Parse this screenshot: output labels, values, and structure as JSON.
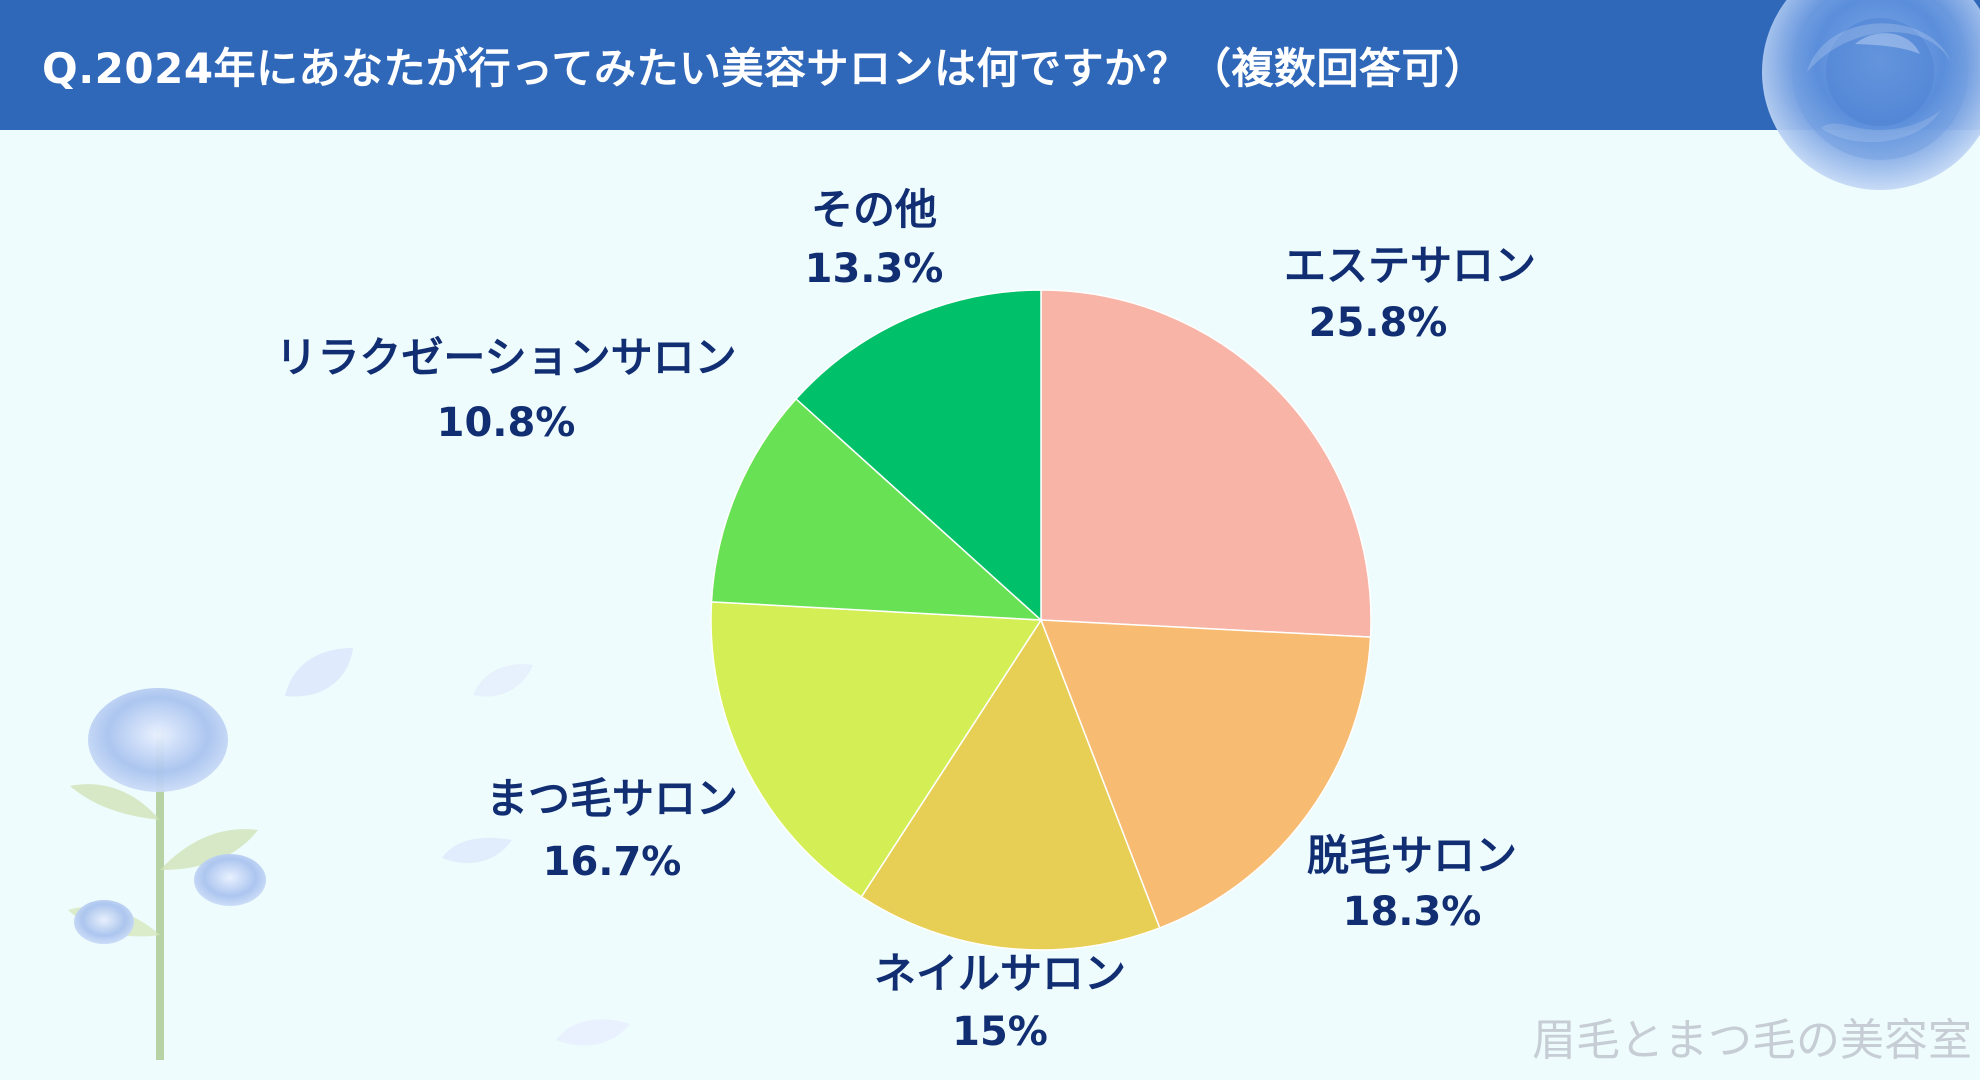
{
  "header": {
    "title": "Q.2024年にあなたが行ってみたい美容サロンは何ですか？（複数回答可）"
  },
  "chart_data": {
    "type": "pie",
    "title": "",
    "slices": [
      {
        "label": "エステサロン",
        "value_text": "25.8%",
        "value": 25.8,
        "color": "#f8b5a7"
      },
      {
        "label": "脱毛サロン",
        "value_text": "18.3%",
        "value": 18.3,
        "color": "#f7bb72"
      },
      {
        "label": "ネイルサロン",
        "value_text": "15%",
        "value": 15,
        "color": "#e7cf55"
      },
      {
        "label": "まつ毛サロン",
        "value_text": "16.7%",
        "value": 16.7,
        "color": "#d3ef55"
      },
      {
        "label": "リラクゼーションサロン",
        "value_text": "10.8%",
        "value": 10.8,
        "color": "#69e154"
      },
      {
        "label": "その他",
        "value_text": "13.3%",
        "value": 13.3,
        "color": "#00c06a"
      }
    ]
  },
  "footer": {
    "watermark": "眉毛とまつ毛の美容室"
  }
}
